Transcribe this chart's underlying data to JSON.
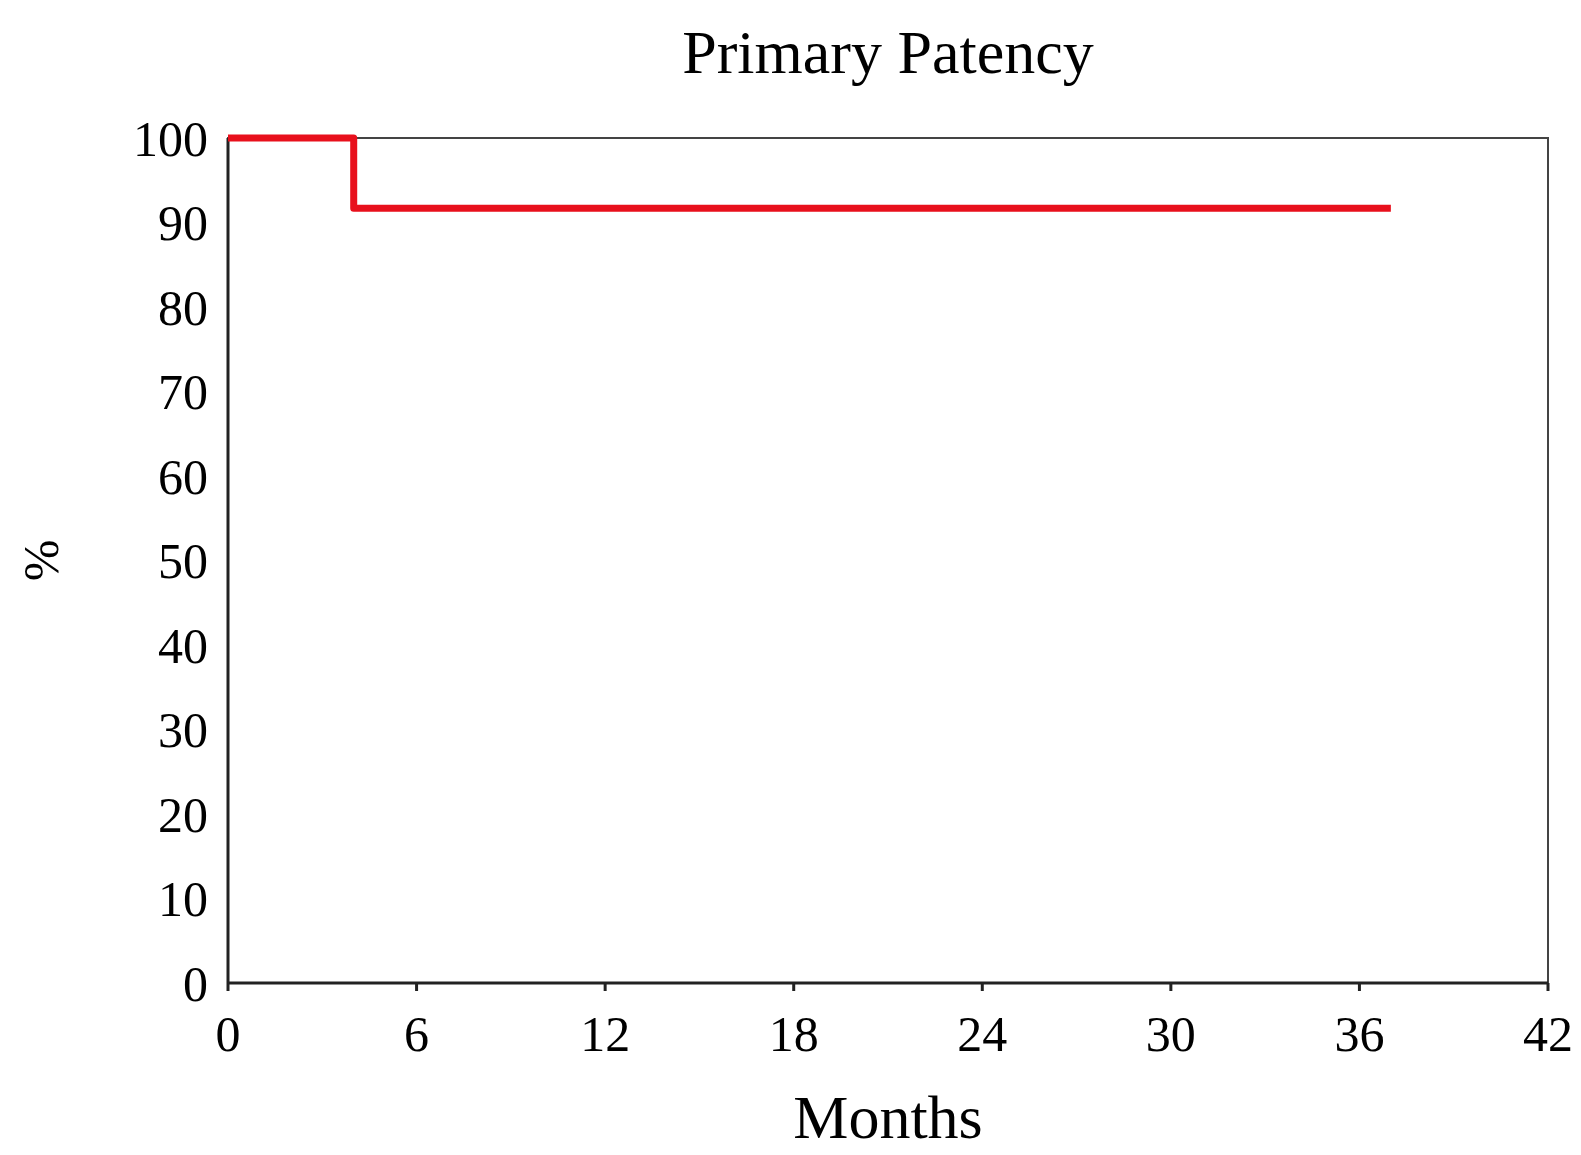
{
  "chart_data": {
    "type": "step",
    "title": "Primary Patency",
    "xlabel": "Months",
    "ylabel": "%",
    "x": [
      0,
      4,
      37
    ],
    "series": [
      {
        "color": "#e8101c",
        "values": [
          100,
          91.7,
          91.7
        ]
      }
    ],
    "xlim": [
      0,
      42
    ],
    "xticks": [
      0,
      6,
      12,
      18,
      24,
      30,
      36,
      42
    ],
    "ylim": [
      0,
      100
    ],
    "yticks": [
      0,
      10,
      20,
      30,
      40,
      50,
      60,
      70,
      80,
      90,
      100
    ],
    "grid": false,
    "marker": "none",
    "line_style": "solid"
  }
}
